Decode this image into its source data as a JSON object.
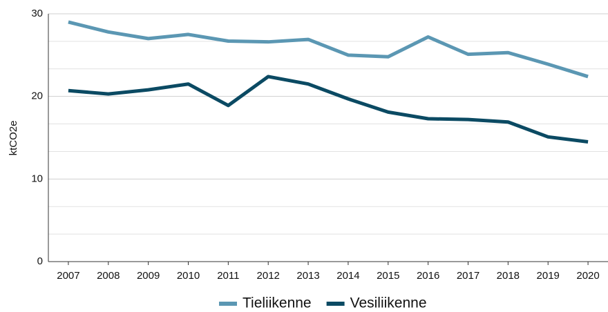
{
  "chart_data": {
    "type": "line",
    "y_label": "ktCO2e",
    "categories": [
      "2007",
      "2008",
      "2009",
      "2010",
      "2011",
      "2012",
      "2013",
      "2014",
      "2015",
      "2016",
      "2017",
      "2018",
      "2019",
      "2020"
    ],
    "series": [
      {
        "name": "Tieliikenne",
        "color": "#5b97b3",
        "values": [
          29.0,
          27.8,
          27.0,
          27.5,
          26.7,
          26.6,
          26.9,
          25.0,
          24.8,
          27.2,
          25.1,
          25.3,
          23.9,
          22.4
        ]
      },
      {
        "name": "Vesiliikenne",
        "color": "#0b4a63",
        "values": [
          20.7,
          20.3,
          20.8,
          21.5,
          18.9,
          22.4,
          21.5,
          19.7,
          18.1,
          17.3,
          17.2,
          16.9,
          15.1,
          14.5
        ]
      }
    ],
    "ylim": [
      0,
      30
    ],
    "yticks": [
      0,
      10,
      20,
      30
    ],
    "grid": true,
    "minor_grid_divisions": 3,
    "legend": "bottom"
  }
}
